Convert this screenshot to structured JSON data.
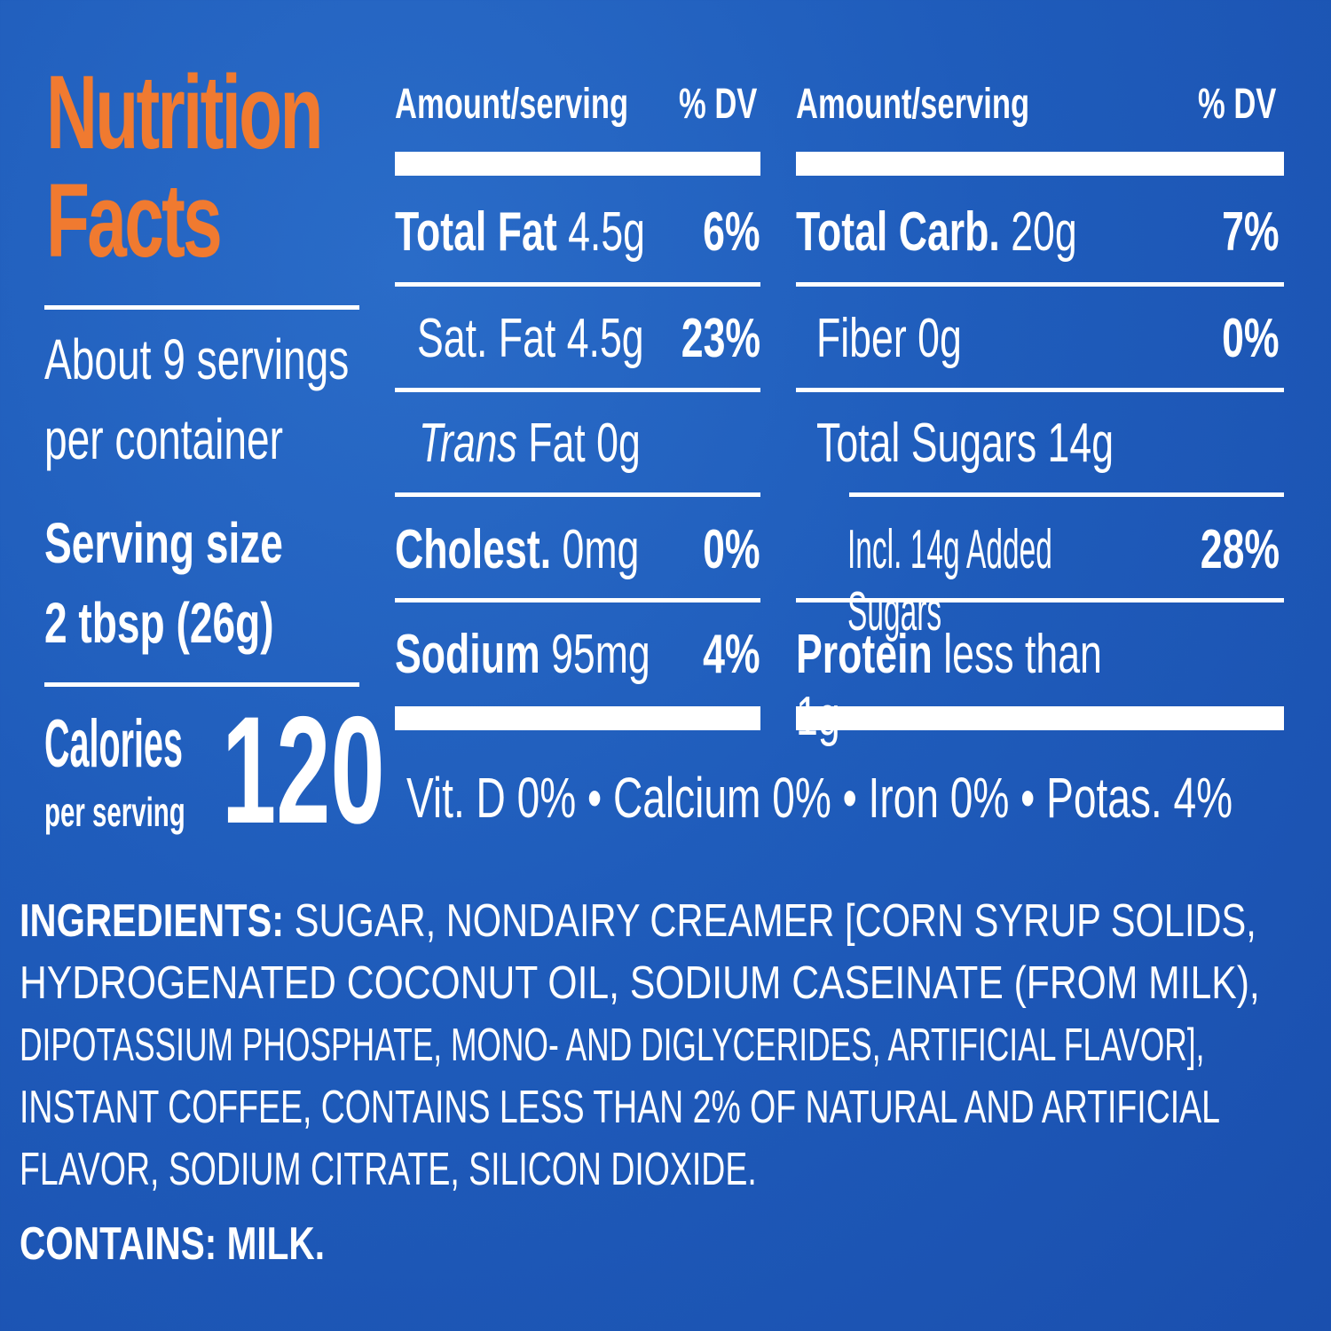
{
  "colors": {
    "background": "#1f5cbb",
    "title": "#f07a30",
    "text": "#ffffff"
  },
  "title": {
    "line1": "Nutrition",
    "line2": "Facts"
  },
  "servings": {
    "line1": "About 9 servings",
    "line2": "per container"
  },
  "serving_size": {
    "label": "Serving size",
    "value": "2 tbsp (26g)"
  },
  "calories": {
    "label": "Calories",
    "sub": "per serving",
    "value": "120"
  },
  "col_headers": {
    "amount": "Amount/serving",
    "dv": "% DV"
  },
  "left_rows": [
    {
      "name": "Total Fat",
      "amount": "4.5g",
      "dv": "6%"
    },
    {
      "name": "Sat. Fat",
      "amount": "4.5g",
      "dv": "23%"
    },
    {
      "name": "Trans",
      "name2": "Fat",
      "amount": "0g",
      "dv": ""
    },
    {
      "name": "Cholest.",
      "amount": "0mg",
      "dv": "0%"
    },
    {
      "name": "Sodium",
      "amount": "95mg",
      "dv": "4%"
    }
  ],
  "right_rows": [
    {
      "name": "Total Carb.",
      "amount": "20g",
      "dv": "7%"
    },
    {
      "name": "Fiber",
      "amount": "0g",
      "dv": "0%"
    },
    {
      "name": "Total Sugars",
      "amount": "14g",
      "dv": ""
    },
    {
      "name": "Incl. 14g Added Sugars",
      "amount": "",
      "dv": "28%"
    },
    {
      "name": "Protein",
      "amount": "less than 1g",
      "dv": ""
    }
  ],
  "vitamins": "Vit. D 0% • Calcium 0% • Iron 0% • Potas. 4%",
  "ingredients": {
    "label": "INGREDIENTS:",
    "lines": [
      "SUGAR, NONDAIRY CREAMER [CORN SYRUP SOLIDS,",
      "HYDROGENATED COCONUT OIL, SODIUM CASEINATE (FROM MILK),",
      "DIPOTASSIUM PHOSPHATE, MONO- AND DIGLYCERIDES, ARTIFICIAL FLAVOR],",
      "INSTANT COFFEE, CONTAINS LESS THAN 2% OF NATURAL AND ARTIFICIAL",
      "FLAVOR, SODIUM CITRATE, SILICON DIOXIDE."
    ]
  },
  "contains": {
    "label": "CONTAINS:",
    "value": "MILK."
  }
}
